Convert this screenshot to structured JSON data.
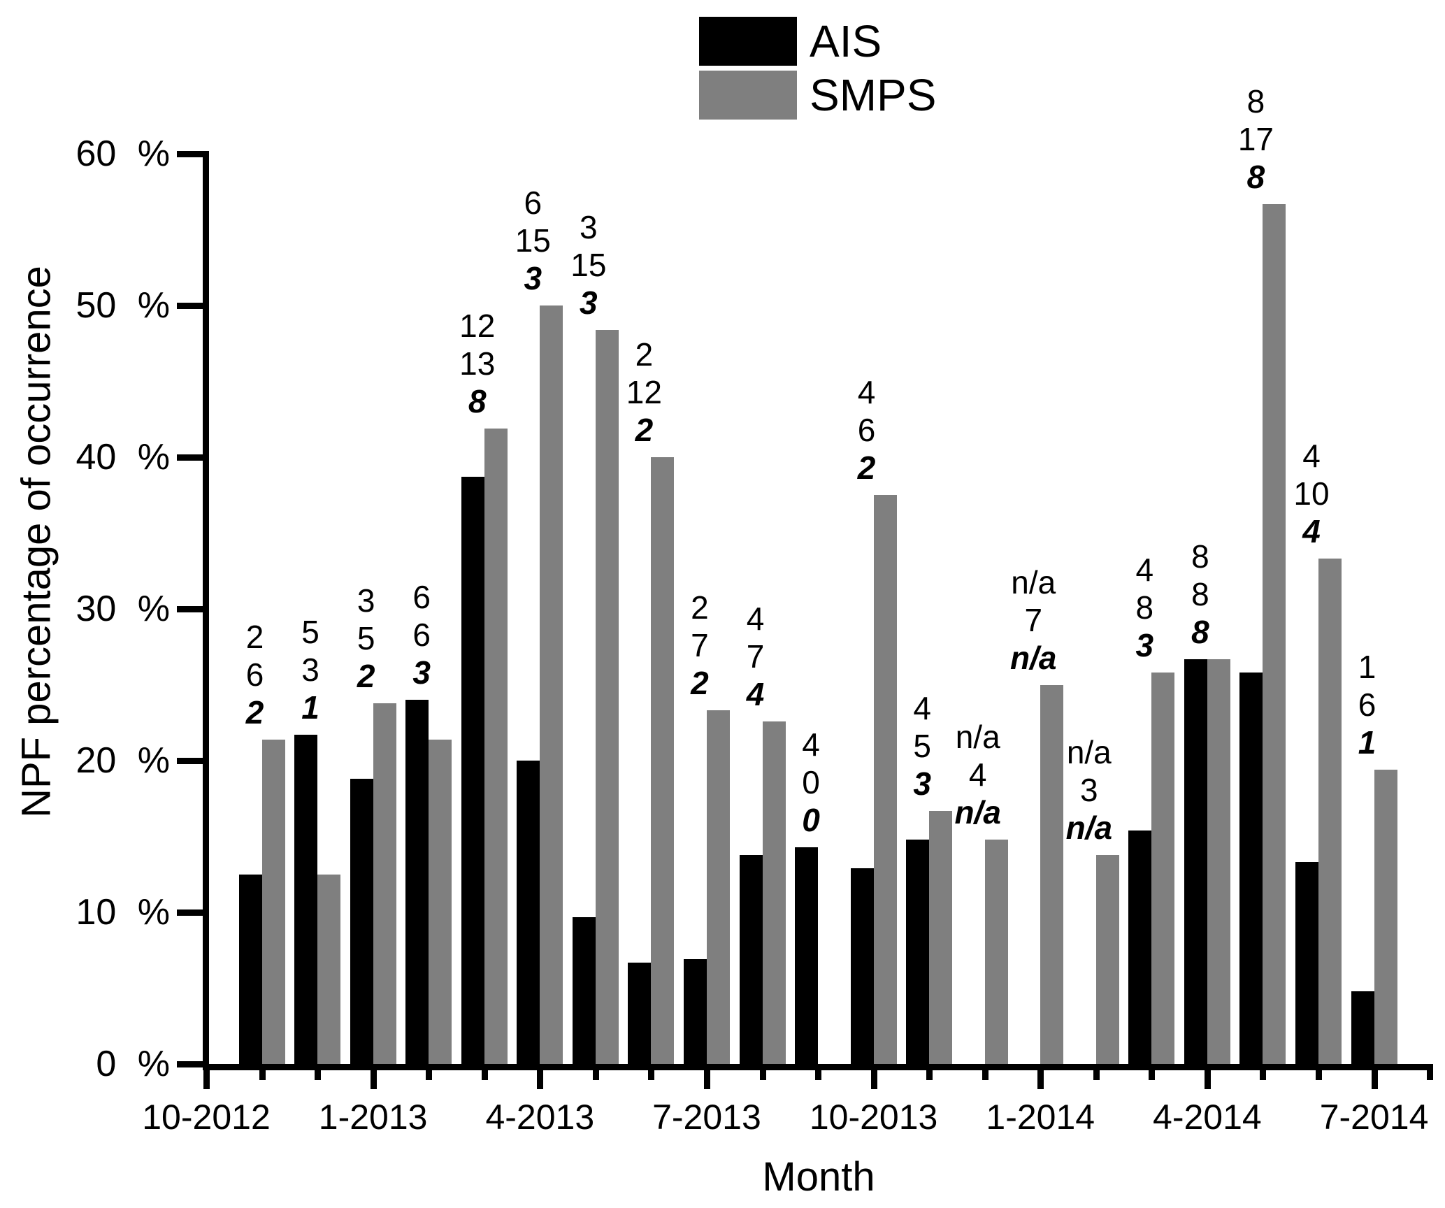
{
  "figure": {
    "y_axis_title": "NPF percentage of occurrence",
    "x_axis_title": "Month",
    "background_color": "#ffffff",
    "axis_color": "#000000"
  },
  "legend": {
    "items": [
      {
        "label": "AIS",
        "color": "#000000"
      },
      {
        "label": "SMPS",
        "color": "#7f7f7f"
      }
    ]
  },
  "chart_data": {
    "type": "bar",
    "title": "",
    "xlabel": "Month",
    "ylabel": "NPF percentage of occurrence",
    "ylim": [
      0,
      60
    ],
    "grid": false,
    "legend_position": "top-center",
    "y_tick_labels": [
      "0 %",
      "10 %",
      "20 %",
      "30 %",
      "40 %",
      "50 %",
      "60 %"
    ],
    "x_major_tick_labels": [
      "10-2012",
      "1-2013",
      "4-2013",
      "7-2013",
      "10-2013",
      "1-2014",
      "4-2014",
      "7-2014"
    ],
    "x_minor_tick_every_months": 1,
    "categories": [
      "11-2012",
      "12-2012",
      "1-2013",
      "2-2013",
      "3-2013",
      "4-2013",
      "5-2013",
      "6-2013",
      "7-2013",
      "8-2013",
      "9-2013",
      "10-2013",
      "11-2013",
      "12-2013",
      "1-2014",
      "2-2014",
      "3-2014",
      "4-2014",
      "5-2014",
      "6-2014",
      "7-2014"
    ],
    "series": [
      {
        "name": "AIS",
        "color": "#000000",
        "values": [
          12.5,
          21.7,
          18.8,
          24.0,
          38.7,
          20.0,
          9.7,
          6.7,
          6.9,
          13.8,
          14.3,
          12.9,
          14.8,
          null,
          null,
          null,
          15.4,
          26.7,
          25.8,
          13.3,
          4.8
        ]
      },
      {
        "name": "SMPS",
        "color": "#7f7f7f",
        "values": [
          21.4,
          12.5,
          23.8,
          21.4,
          41.9,
          50.0,
          48.4,
          40.0,
          23.3,
          22.6,
          0,
          37.5,
          16.7,
          14.8,
          25.0,
          13.8,
          25.8,
          26.7,
          56.7,
          33.3,
          19.4
        ]
      }
    ],
    "annotations": {
      "note": "three stacked numbers above each month: top = AIS events, middle = SMPS events, bottom (bold italic) = common events; n/a where instrument not available",
      "per_month": [
        [
          "2",
          "6",
          "2"
        ],
        [
          "5",
          "3",
          "1"
        ],
        [
          "3",
          "5",
          "2"
        ],
        [
          "6",
          "6",
          "3"
        ],
        [
          "12",
          "13",
          "8"
        ],
        [
          "6",
          "15",
          "3"
        ],
        [
          "3",
          "15",
          "3"
        ],
        [
          "2",
          "12",
          "2"
        ],
        [
          "2",
          "7",
          "2"
        ],
        [
          "4",
          "7",
          "4"
        ],
        [
          "4",
          "0",
          "0"
        ],
        [
          "4",
          "6",
          "2"
        ],
        [
          "4",
          "5",
          "3"
        ],
        [
          "n/a",
          "4",
          "n/a"
        ],
        [
          "n/a",
          "7",
          "n/a"
        ],
        [
          "n/a",
          "3",
          "n/a"
        ],
        [
          "4",
          "8",
          "3"
        ],
        [
          "8",
          "8",
          "8"
        ],
        [
          "8",
          "17",
          "8"
        ],
        [
          "4",
          "10",
          "4"
        ],
        [
          "1",
          "6",
          "1"
        ]
      ]
    }
  }
}
